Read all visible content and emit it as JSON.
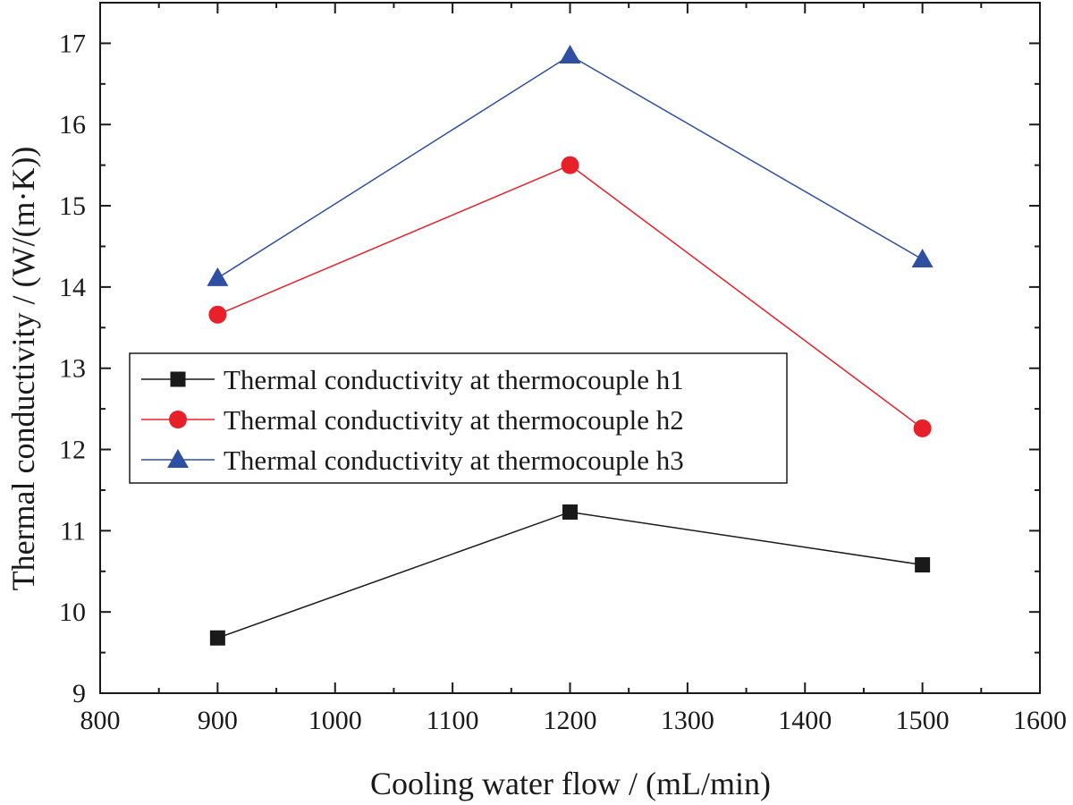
{
  "chart_data": {
    "type": "line",
    "xlabel": "Cooling water flow / (mL/min)",
    "ylabel": "Thermal conductivity / (W/(m·K))",
    "xlim": [
      800,
      1600
    ],
    "ylim": [
      9,
      17.5
    ],
    "x_ticks": [
      800,
      900,
      1000,
      1100,
      1200,
      1300,
      1400,
      1500,
      1600
    ],
    "y_ticks": [
      9,
      10,
      11,
      12,
      13,
      14,
      15,
      16,
      17
    ],
    "x_tick_labels": [
      "800",
      "900",
      "1000",
      "1100",
      "1200",
      "1300",
      "1400",
      "1500",
      "1600"
    ],
    "y_tick_labels": [
      "9",
      "10",
      "11",
      "12",
      "13",
      "14",
      "15",
      "16",
      "17"
    ],
    "x": [
      900,
      1200,
      1500
    ],
    "grid": false,
    "legend_position": "middle-left",
    "series": [
      {
        "name": "Thermal conductivity at thermocouple h1",
        "values": [
          9.68,
          11.23,
          10.58
        ],
        "color": "#1a1a1a",
        "marker": "square"
      },
      {
        "name": "Thermal conductivity at thermocouple h2",
        "values": [
          13.66,
          15.5,
          12.26
        ],
        "color": "#e8202a",
        "marker": "circle"
      },
      {
        "name": "Thermal conductivity at thermocouple h3",
        "values": [
          14.11,
          16.85,
          14.34
        ],
        "color": "#2f4fa3",
        "marker": "triangle"
      }
    ]
  }
}
